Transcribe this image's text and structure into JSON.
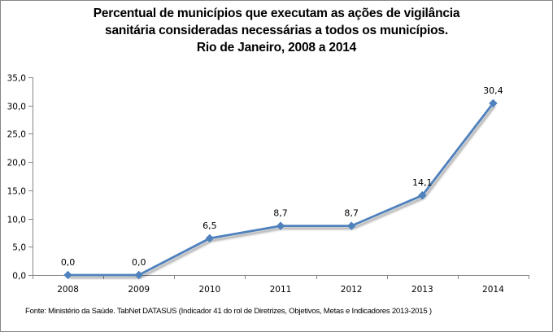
{
  "chart_data": {
    "type": "line",
    "title": [
      "Percentual de municípios que executam as ações de vigilância",
      "sanitária consideradas necessárias a todos os municípios.",
      "Rio de Janeiro, 2008 a 2014"
    ],
    "xlabel": "",
    "ylabel": "",
    "categories": [
      "2008",
      "2009",
      "2010",
      "2011",
      "2012",
      "2013",
      "2014"
    ],
    "series": [
      {
        "name": "Percentual de municípios",
        "values": [
          0.0,
          0.0,
          6.5,
          8.7,
          8.7,
          14.1,
          30.4
        ],
        "data_labels": [
          "0,0",
          "0,0",
          "6,5",
          "8,7",
          "8,7",
          "14,1",
          "30,4"
        ],
        "color": "#4f81bd",
        "marker": "diamond"
      }
    ],
    "ylim": [
      0,
      35
    ],
    "yticks": [
      0,
      5,
      10,
      15,
      20,
      25,
      30,
      35
    ],
    "ytick_labels": [
      "0,0",
      "5,0",
      "10,0",
      "15,0",
      "20,0",
      "25,0",
      "30,0",
      "35,0"
    ],
    "grid": false,
    "legend": "none",
    "source": "Fonte: Ministério da Saúde. TabNet DATASUS (Indicador 41 do rol de Diretrizes, Objetivos, Metas e Indicadores 2013-2015 )"
  },
  "colors": {
    "line": "#4f81bd",
    "axis": "#868686",
    "border": "#868686"
  }
}
